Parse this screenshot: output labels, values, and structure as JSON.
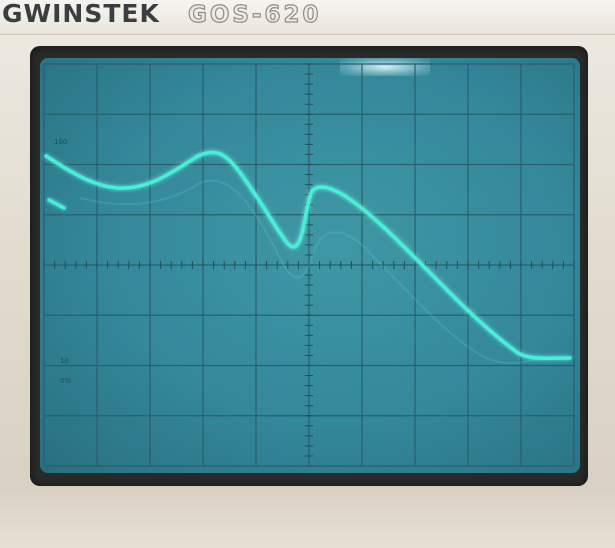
{
  "device": {
    "brand": "GWINSTEK",
    "model": "GOS-620"
  },
  "screen": {
    "graticule_divisions": {
      "horizontal": 10,
      "vertical": 8
    },
    "scale_labels": {
      "top": "100",
      "bottom_left_1": "10",
      "bottom_left_2": "0%"
    },
    "trace_color": "#46f0d6",
    "screen_color": "#3a8f9f"
  }
}
